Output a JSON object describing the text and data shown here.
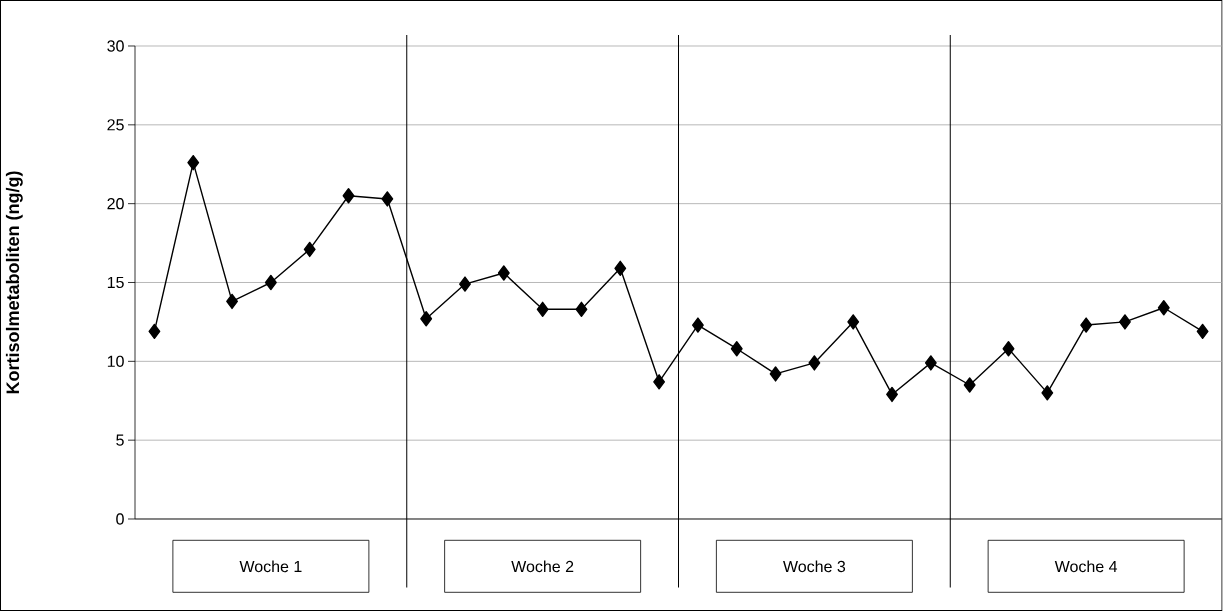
{
  "chart_data": {
    "type": "line",
    "ylabel": "Kortisolmetaboliten (ng/g)",
    "categories": [
      null,
      null,
      null,
      null,
      null,
      null,
      null,
      null,
      null,
      null,
      null,
      null,
      null,
      null,
      null,
      null,
      null,
      null,
      null,
      null,
      null,
      null,
      null,
      null,
      null,
      null,
      null,
      null
    ],
    "series": [
      {
        "color": "#000000",
        "values": [
          11.9,
          22.6,
          13.8,
          15.0,
          17.1,
          20.5,
          20.3,
          12.7,
          14.9,
          15.6,
          13.3,
          13.3,
          15.9,
          8.7,
          12.3,
          10.8,
          9.2,
          9.9,
          12.5,
          7.9,
          9.9,
          8.5,
          10.8,
          8.0,
          12.3,
          12.5,
          13.4,
          11.9
        ]
      }
    ],
    "ylim": [
      0,
      30
    ],
    "yticks": [
      0,
      5,
      10,
      15,
      20,
      25,
      30
    ],
    "grid": "y",
    "marker": "diamond",
    "line_style": "solid",
    "tick_labels": "y",
    "annotations": [
      "Woche 1",
      "Woche 2",
      "Woche 3",
      "Woche 4"
    ]
  }
}
